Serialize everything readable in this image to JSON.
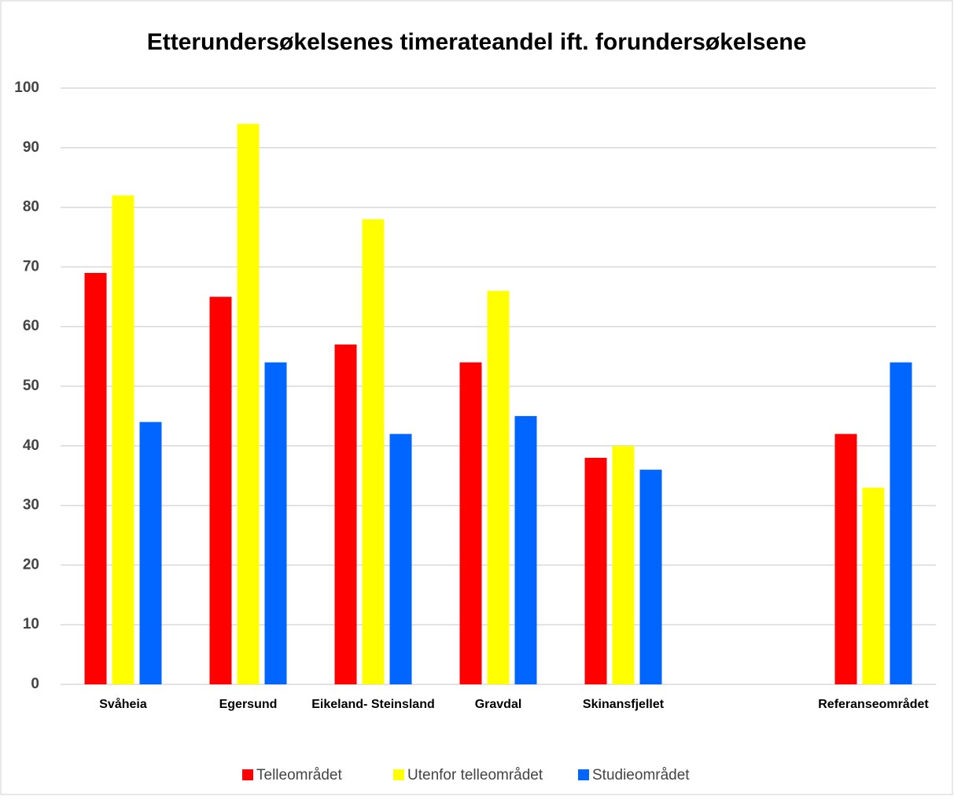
{
  "chart_data": {
    "type": "bar",
    "title": "Etterundersøkelsenes timerateandel ift. forundersøkelsene",
    "categories": [
      "Svåheia",
      "Egersund",
      "Eikeland- Steinsland",
      "Gravdal",
      "Skinansfjellet",
      null,
      "Referanseområdet"
    ],
    "series": [
      {
        "name": "Telleområdet",
        "color": "#ff0000",
        "values": [
          69,
          65,
          57,
          54,
          38,
          null,
          42
        ]
      },
      {
        "name": "Utenfor telleområdet",
        "color": "#ffff00",
        "values": [
          82,
          94,
          78,
          66,
          40,
          null,
          33
        ]
      },
      {
        "name": "Studieområdet",
        "color": "#0066ff",
        "values": [
          44,
          54,
          42,
          45,
          36,
          null,
          54
        ]
      }
    ],
    "ylim": [
      0,
      100
    ],
    "yticks": [
      0,
      10,
      20,
      30,
      40,
      50,
      60,
      70,
      80,
      90,
      100
    ],
    "grid": true,
    "legend": "bottom"
  }
}
